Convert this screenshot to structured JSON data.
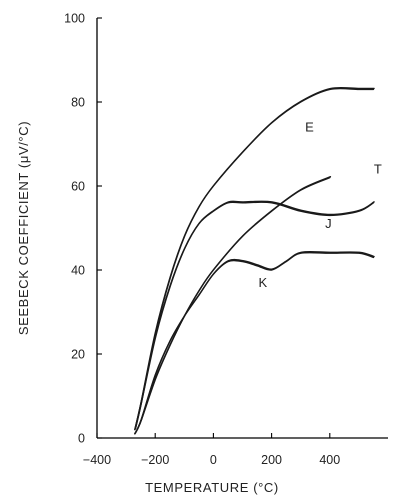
{
  "chart_data": {
    "type": "line",
    "xlabel": "TEMPERATURE (°C)",
    "ylabel": "SEEBECK COEFFICIENT (μV/°C)",
    "xlim": [
      -400,
      600
    ],
    "ylim": [
      0,
      100
    ],
    "xticks": [
      -400,
      -200,
      0,
      200,
      400
    ],
    "yticks": [
      0,
      20,
      40,
      60,
      80,
      100
    ],
    "grid": false,
    "series": [
      {
        "name": "E",
        "x": [
          -270,
          -250,
          -200,
          -150,
          -100,
          -50,
          0,
          100,
          200,
          300,
          400,
          500,
          550
        ],
        "y": [
          2,
          8,
          25,
          38,
          48,
          55,
          60,
          68,
          75,
          80,
          83,
          83,
          83
        ]
      },
      {
        "name": "T",
        "x": [
          -270,
          -250,
          -200,
          -150,
          -100,
          -50,
          0,
          100,
          200,
          300,
          400
        ],
        "y": [
          1,
          4,
          14,
          22,
          29,
          35,
          40,
          48,
          54,
          59,
          62
        ]
      },
      {
        "name": "J",
        "x": [
          -270,
          -250,
          -200,
          -150,
          -100,
          -50,
          0,
          50,
          100,
          200,
          300,
          400,
          500,
          550
        ],
        "y": [
          2,
          8,
          24,
          36,
          45,
          51,
          54,
          56,
          56,
          56,
          54,
          53,
          54,
          56
        ]
      },
      {
        "name": "K",
        "x": [
          -270,
          -250,
          -200,
          -150,
          -100,
          -50,
          0,
          50,
          100,
          150,
          200,
          250,
          300,
          400,
          500,
          550
        ],
        "y": [
          1,
          4,
          15,
          23,
          29,
          34,
          39,
          42,
          42,
          41,
          40,
          42,
          44,
          44,
          44,
          43
        ]
      }
    ]
  }
}
